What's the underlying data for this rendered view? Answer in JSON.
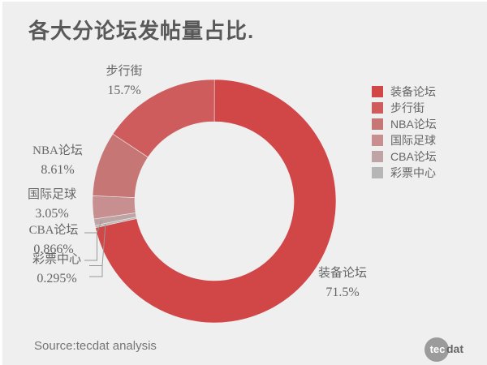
{
  "page": {
    "title": "各大分论坛发帖量占比.",
    "source": "Source:tecdat analysis"
  },
  "logo": {
    "circle_text": "tec",
    "suffix_text": "dat"
  },
  "colors": {
    "background": "#efefef",
    "title_text": "#595959",
    "label_text": "#666666",
    "source_text": "#757575",
    "leader_line": "#999999",
    "logo_circle": "#9b9b9b"
  },
  "chart_data": {
    "type": "pie",
    "subtype": "donut",
    "title": "各大分论坛发帖量占比.",
    "start_angle": "top",
    "largest_slice_direction": "clockwise",
    "inner_radius_ratio": 0.65,
    "legend_position": "right",
    "slices": [
      {
        "label": "装备论坛",
        "value_pct": 71.5,
        "percent_label": "71.5%",
        "color": "#d14646"
      },
      {
        "label": "步行街",
        "value_pct": 15.7,
        "percent_label": "15.7%",
        "color": "#ce5c5c"
      },
      {
        "label": "NBA论坛",
        "value_pct": 8.61,
        "percent_label": "8.61%",
        "color": "#c77676"
      },
      {
        "label": "国际足球",
        "value_pct": 3.05,
        "percent_label": "3.05%",
        "color": "#c78f8f"
      },
      {
        "label": "CBA论坛",
        "value_pct": 0.866,
        "percent_label": "0.866%",
        "color": "#bea4a4"
      },
      {
        "label": "彩票中心",
        "value_pct": 0.295,
        "percent_label": "0.295%",
        "color": "#b6b6b6"
      }
    ]
  }
}
